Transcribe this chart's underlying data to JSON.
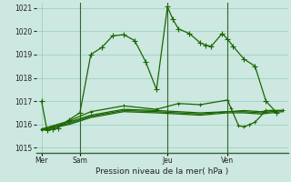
{
  "xlabel": "Pression niveau de la mer( hPa )",
  "bg_color": "#cce8e0",
  "grid_color": "#99ccbb",
  "line_color": "#1a6600",
  "ylim": [
    1014.8,
    1021.2
  ],
  "yticks": [
    1015,
    1016,
    1017,
    1018,
    1019,
    1020,
    1021
  ],
  "xlim": [
    0,
    23
  ],
  "day_labels": [
    "Mer",
    "Sam",
    "Jeu",
    "Ven"
  ],
  "day_positions": [
    0.5,
    4.0,
    12.0,
    17.5
  ],
  "day_vlines": [
    4.0,
    12.0,
    17.5
  ],
  "line1_x": [
    0.5,
    1.0,
    1.5,
    2.0,
    3.0,
    4.0,
    5.0,
    6.0,
    7.0,
    8.0,
    9.0,
    10.0,
    11.0,
    12.0,
    12.5,
    13.0,
    14.0,
    15.0,
    15.5,
    16.0,
    17.0,
    17.5,
    18.0,
    19.0,
    20.0,
    21.0,
    22.0
  ],
  "line1_y": [
    1017.0,
    1015.75,
    1015.8,
    1015.85,
    1016.2,
    1016.5,
    1019.0,
    1019.3,
    1019.8,
    1019.85,
    1019.6,
    1018.7,
    1017.5,
    1021.05,
    1020.5,
    1020.1,
    1019.9,
    1019.5,
    1019.4,
    1019.35,
    1019.9,
    1019.65,
    1019.35,
    1018.8,
    1018.5,
    1017.0,
    1016.5
  ],
  "line2_x": [
    0.5,
    3.0,
    5.0,
    8.0,
    11.0,
    13.0,
    15.0,
    17.5,
    19.0,
    20.5,
    21.5,
    22.5
  ],
  "line2_y": [
    1015.8,
    1016.1,
    1016.4,
    1016.65,
    1016.6,
    1016.55,
    1016.5,
    1016.55,
    1016.6,
    1016.55,
    1016.6,
    1016.6
  ],
  "line3_x": [
    0.5,
    3.0,
    5.0,
    8.0,
    11.0,
    13.0,
    15.0,
    17.5,
    19.0,
    20.5,
    21.5,
    22.5
  ],
  "line3_y": [
    1015.75,
    1016.0,
    1016.3,
    1016.55,
    1016.5,
    1016.45,
    1016.4,
    1016.5,
    1016.5,
    1016.45,
    1016.5,
    1016.55
  ],
  "line4_x": [
    0.5,
    3.0,
    5.0,
    8.0,
    11.0,
    13.0,
    15.0,
    17.5,
    19.0,
    20.5,
    21.5,
    22.5
  ],
  "line4_y": [
    1015.75,
    1016.05,
    1016.35,
    1016.6,
    1016.55,
    1016.5,
    1016.45,
    1016.55,
    1016.55,
    1016.5,
    1016.55,
    1016.6
  ],
  "line5_x": [
    0.5,
    3.0,
    5.0,
    8.0,
    11.0,
    13.0,
    15.0,
    17.5,
    17.8,
    18.5,
    19.0,
    19.5,
    20.0,
    21.0,
    22.5
  ],
  "line5_y": [
    1015.8,
    1016.15,
    1016.55,
    1016.8,
    1016.65,
    1016.9,
    1016.85,
    1017.05,
    1016.7,
    1015.95,
    1015.9,
    1016.0,
    1016.1,
    1016.6,
    1016.6
  ]
}
